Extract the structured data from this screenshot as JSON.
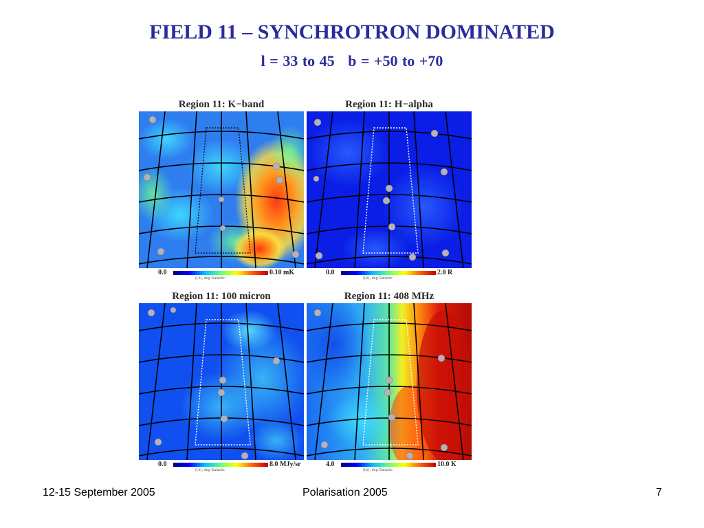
{
  "slide": {
    "title": "FIELD 11 – SYNCHROTRON DOMINATED",
    "subtitle": "l = 33 to 45   b = +50 to +70"
  },
  "panels": [
    {
      "title": "Region 11: K−band",
      "scale_min": "0.0",
      "scale_max": "0.10 mK",
      "caption": "(l,b), deg Galactic",
      "colors": {
        "base": "#2e7ef0",
        "hot": "#ff6a20"
      }
    },
    {
      "title": "Region 11: H−alpha",
      "scale_min": "0.0",
      "scale_max": "2.0 R",
      "caption": "(l,b), deg Galactic",
      "colors": {
        "base": "#0a1ee6",
        "hot": "#1a4af0"
      }
    },
    {
      "title": "Region 11: 100 micron",
      "scale_min": "0.0",
      "scale_max": "8.0 MJy/sr",
      "caption": "(l,b), deg Galactic",
      "colors": {
        "base": "#1050f0",
        "hot": "#3ab8f5"
      }
    },
    {
      "title": "Region 11: 408 MHz",
      "scale_min": "4.0",
      "scale_max": "10.0 K",
      "caption": "(l,b), deg Galactic",
      "colors": {
        "base": "#1a6cf4",
        "hot": "#d81a0a"
      }
    }
  ],
  "footer": {
    "date": "12-15 September 2005",
    "event": "Polarisation 2005",
    "page": "7"
  }
}
